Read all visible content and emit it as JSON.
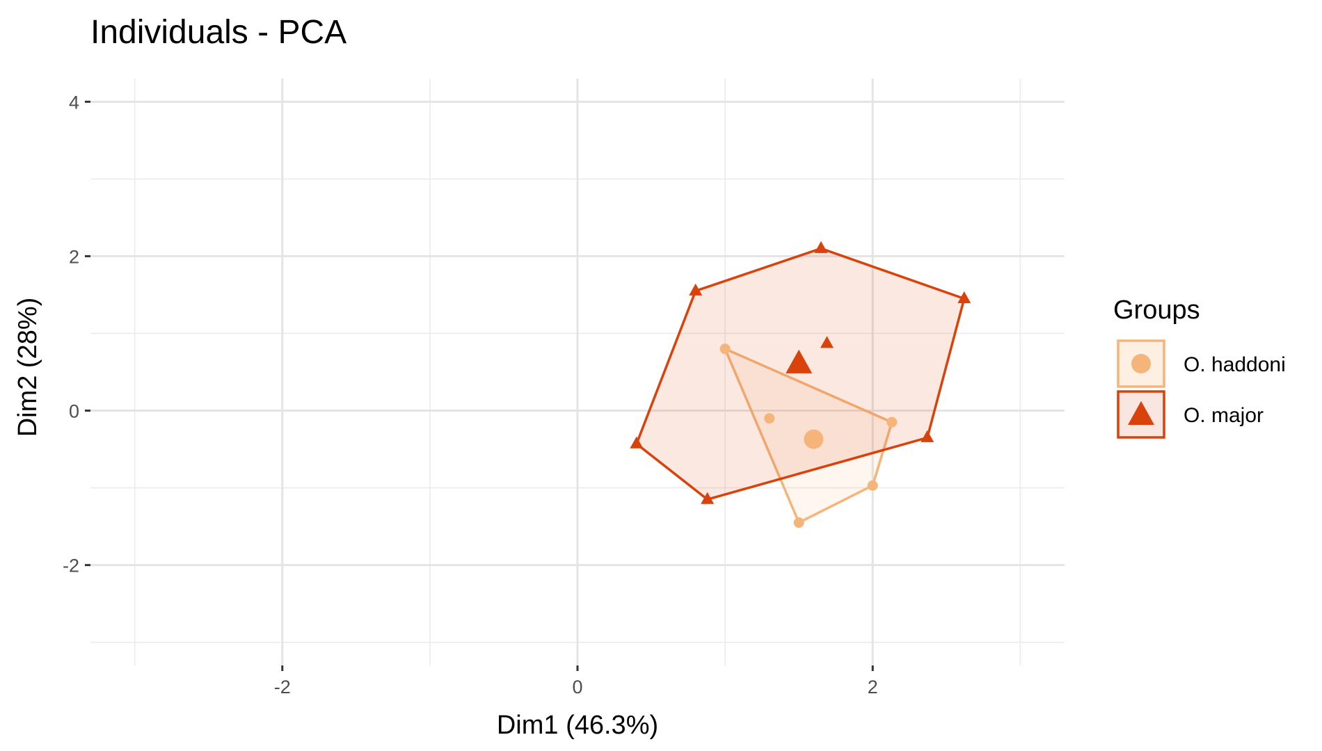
{
  "chart_data": {
    "type": "scatter",
    "title": "Individuals - PCA",
    "xlabel": "Dim1 (46.3%)",
    "ylabel": "Dim2 (28%)",
    "xlim": [
      -3.3,
      3.3
    ],
    "ylim": [
      -3.3,
      4.3
    ],
    "x_ticks": [
      -2,
      0,
      2
    ],
    "x_tick_labels": [
      "-2",
      "0",
      "2"
    ],
    "y_ticks": [
      -2,
      0,
      2,
      4
    ],
    "y_tick_labels": [
      "-2",
      "0",
      "2",
      "4"
    ],
    "x_minor_grid": [
      -3,
      -1,
      1,
      3
    ],
    "y_minor_grid": [
      -3,
      -1,
      1,
      3
    ],
    "grid": true,
    "legend": {
      "title": "Groups",
      "placement": "right"
    },
    "series": [
      {
        "name": "O. haddoni",
        "marker": "circle",
        "color": "#F5B47A",
        "fill": "#FDF0E2",
        "points": [
          {
            "x": 1.0,
            "y": 0.8
          },
          {
            "x": 1.3,
            "y": -0.1
          },
          {
            "x": 2.13,
            "y": -0.15
          },
          {
            "x": 2.0,
            "y": -0.97
          },
          {
            "x": 1.5,
            "y": -1.45
          }
        ],
        "hull": [
          {
            "x": 1.0,
            "y": 0.8
          },
          {
            "x": 2.13,
            "y": -0.15
          },
          {
            "x": 2.0,
            "y": -0.97
          },
          {
            "x": 1.5,
            "y": -1.45
          }
        ],
        "centroid": {
          "x": 1.6,
          "y": -0.37
        }
      },
      {
        "name": "O. major",
        "marker": "triangle",
        "color": "#D9420B",
        "fill": "#F9E6E0",
        "points": [
          {
            "x": 0.8,
            "y": 1.55
          },
          {
            "x": 1.65,
            "y": 2.1
          },
          {
            "x": 2.62,
            "y": 1.45
          },
          {
            "x": 2.37,
            "y": -0.35
          },
          {
            "x": 0.4,
            "y": -0.43
          },
          {
            "x": 0.88,
            "y": -1.15
          },
          {
            "x": 1.69,
            "y": 0.87
          }
        ],
        "hull": [
          {
            "x": 0.8,
            "y": 1.55
          },
          {
            "x": 1.65,
            "y": 2.1
          },
          {
            "x": 2.62,
            "y": 1.45
          },
          {
            "x": 2.37,
            "y": -0.35
          },
          {
            "x": 0.88,
            "y": -1.15
          },
          {
            "x": 0.4,
            "y": -0.43
          }
        ],
        "centroid": {
          "x": 1.5,
          "y": 0.6
        }
      }
    ]
  }
}
